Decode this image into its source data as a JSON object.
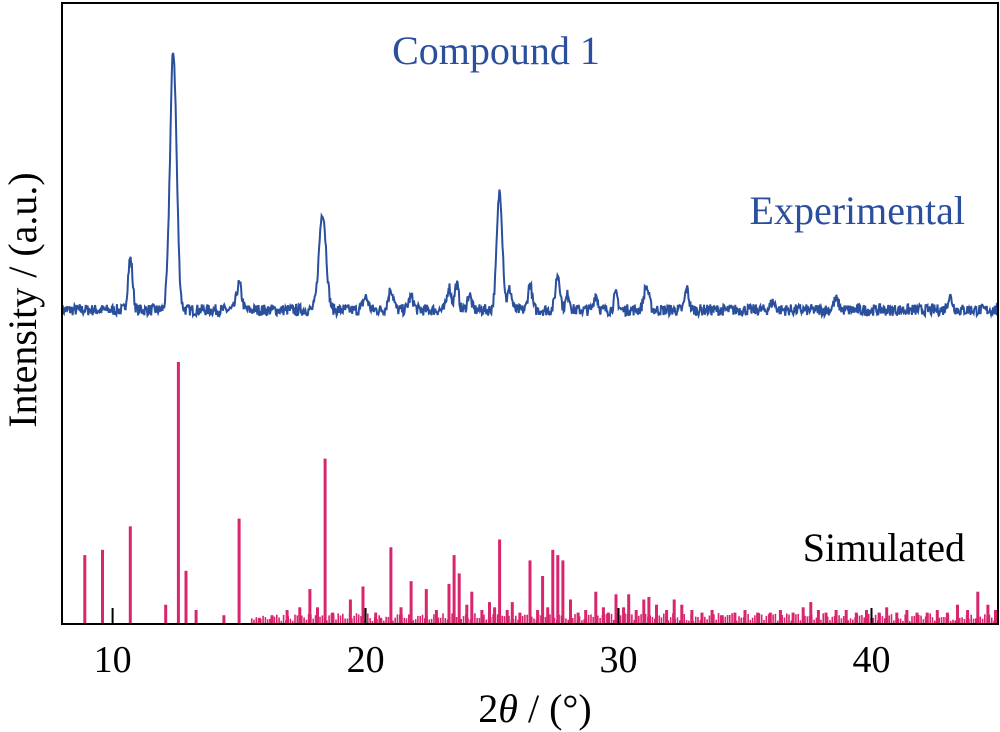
{
  "chart_data": {
    "type": "line",
    "title": "Compound 1",
    "xlabel_prefix": "2",
    "xlabel_symbol": "θ",
    "xlabel_suffix": " / (°)",
    "ylabel": "Intensity / (a.u.)",
    "xlim": [
      8,
      45
    ],
    "x_ticks": [
      10,
      20,
      30,
      40
    ],
    "grid": false,
    "colors": {
      "experimental": "#2a4f9c",
      "simulated": "#d9246e",
      "axis": "#000000"
    },
    "series": [
      {
        "name": "Experimental",
        "style": "line",
        "baseline": 0.12,
        "noise": 0.045,
        "peaks": [
          {
            "x": 10.7,
            "h": 0.2,
            "w": 0.09
          },
          {
            "x": 12.4,
            "h": 1.0,
            "w": 0.13
          },
          {
            "x": 15.0,
            "h": 0.1,
            "w": 0.1
          },
          {
            "x": 18.3,
            "h": 0.38,
            "w": 0.14
          },
          {
            "x": 20.0,
            "h": 0.05,
            "w": 0.1
          },
          {
            "x": 21.0,
            "h": 0.08,
            "w": 0.1
          },
          {
            "x": 21.8,
            "h": 0.05,
            "w": 0.1
          },
          {
            "x": 23.3,
            "h": 0.09,
            "w": 0.08
          },
          {
            "x": 23.6,
            "h": 0.1,
            "w": 0.08
          },
          {
            "x": 24.1,
            "h": 0.06,
            "w": 0.08
          },
          {
            "x": 25.3,
            "h": 0.46,
            "w": 0.11
          },
          {
            "x": 25.7,
            "h": 0.08,
            "w": 0.08
          },
          {
            "x": 26.5,
            "h": 0.1,
            "w": 0.08
          },
          {
            "x": 27.6,
            "h": 0.14,
            "w": 0.09
          },
          {
            "x": 28.0,
            "h": 0.06,
            "w": 0.08
          },
          {
            "x": 29.1,
            "h": 0.06,
            "w": 0.08
          },
          {
            "x": 29.9,
            "h": 0.06,
            "w": 0.08
          },
          {
            "x": 31.1,
            "h": 0.09,
            "w": 0.1
          },
          {
            "x": 32.7,
            "h": 0.08,
            "w": 0.08
          },
          {
            "x": 36.1,
            "h": 0.03,
            "w": 0.1
          },
          {
            "x": 38.6,
            "h": 0.04,
            "w": 0.1
          },
          {
            "x": 43.1,
            "h": 0.05,
            "w": 0.1
          }
        ]
      },
      {
        "name": "Simulated",
        "style": "sticks",
        "sticks": [
          [
            8.9,
            0.26
          ],
          [
            9.6,
            0.28
          ],
          [
            10.7,
            0.37
          ],
          [
            12.1,
            0.07
          ],
          [
            12.6,
            1.0
          ],
          [
            12.9,
            0.2
          ],
          [
            13.3,
            0.05
          ],
          [
            14.4,
            0.03
          ],
          [
            15.0,
            0.4
          ],
          [
            15.8,
            0.02
          ],
          [
            16.3,
            0.03
          ],
          [
            16.9,
            0.05
          ],
          [
            17.4,
            0.06
          ],
          [
            17.8,
            0.13
          ],
          [
            18.1,
            0.06
          ],
          [
            18.4,
            0.63
          ],
          [
            18.7,
            0.04
          ],
          [
            19.4,
            0.09
          ],
          [
            19.9,
            0.14
          ],
          [
            20.4,
            0.04
          ],
          [
            20.6,
            0.02
          ],
          [
            21.0,
            0.29
          ],
          [
            21.4,
            0.06
          ],
          [
            21.8,
            0.16
          ],
          [
            22.4,
            0.13
          ],
          [
            22.8,
            0.05
          ],
          [
            23.3,
            0.15
          ],
          [
            23.5,
            0.26
          ],
          [
            23.7,
            0.19
          ],
          [
            24.0,
            0.07
          ],
          [
            24.2,
            0.12
          ],
          [
            24.6,
            0.05
          ],
          [
            24.9,
            0.08
          ],
          [
            25.1,
            0.06
          ],
          [
            25.3,
            0.32
          ],
          [
            25.6,
            0.05
          ],
          [
            25.8,
            0.08
          ],
          [
            26.1,
            0.04
          ],
          [
            26.5,
            0.24
          ],
          [
            26.8,
            0.05
          ],
          [
            27.0,
            0.18
          ],
          [
            27.2,
            0.06
          ],
          [
            27.4,
            0.28
          ],
          [
            27.6,
            0.26
          ],
          [
            27.8,
            0.24
          ],
          [
            28.1,
            0.09
          ],
          [
            28.4,
            0.04
          ],
          [
            28.7,
            0.05
          ],
          [
            29.1,
            0.12
          ],
          [
            29.4,
            0.06
          ],
          [
            29.6,
            0.04
          ],
          [
            29.9,
            0.11
          ],
          [
            30.2,
            0.06
          ],
          [
            30.4,
            0.11
          ],
          [
            30.7,
            0.05
          ],
          [
            31.0,
            0.09
          ],
          [
            31.2,
            0.1
          ],
          [
            31.5,
            0.07
          ],
          [
            31.9,
            0.05
          ],
          [
            32.2,
            0.09
          ],
          [
            32.5,
            0.07
          ],
          [
            32.9,
            0.05
          ],
          [
            33.3,
            0.04
          ],
          [
            33.7,
            0.05
          ],
          [
            34.1,
            0.03
          ],
          [
            34.6,
            0.04
          ],
          [
            35.0,
            0.05
          ],
          [
            35.5,
            0.04
          ],
          [
            36.0,
            0.04
          ],
          [
            36.4,
            0.05
          ],
          [
            36.9,
            0.04
          ],
          [
            37.3,
            0.06
          ],
          [
            37.6,
            0.08
          ],
          [
            37.9,
            0.05
          ],
          [
            38.2,
            0.04
          ],
          [
            38.6,
            0.05
          ],
          [
            39.0,
            0.05
          ],
          [
            39.4,
            0.04
          ],
          [
            39.8,
            0.05
          ],
          [
            40.3,
            0.04
          ],
          [
            40.6,
            0.06
          ],
          [
            41.0,
            0.04
          ],
          [
            41.4,
            0.05
          ],
          [
            41.8,
            0.04
          ],
          [
            42.2,
            0.04
          ],
          [
            42.6,
            0.05
          ],
          [
            43.0,
            0.04
          ],
          [
            43.4,
            0.07
          ],
          [
            43.8,
            0.05
          ],
          [
            44.2,
            0.12
          ],
          [
            44.6,
            0.07
          ],
          [
            44.9,
            0.05
          ]
        ],
        "dense_x": [
          15.5,
          45
        ]
      }
    ]
  }
}
